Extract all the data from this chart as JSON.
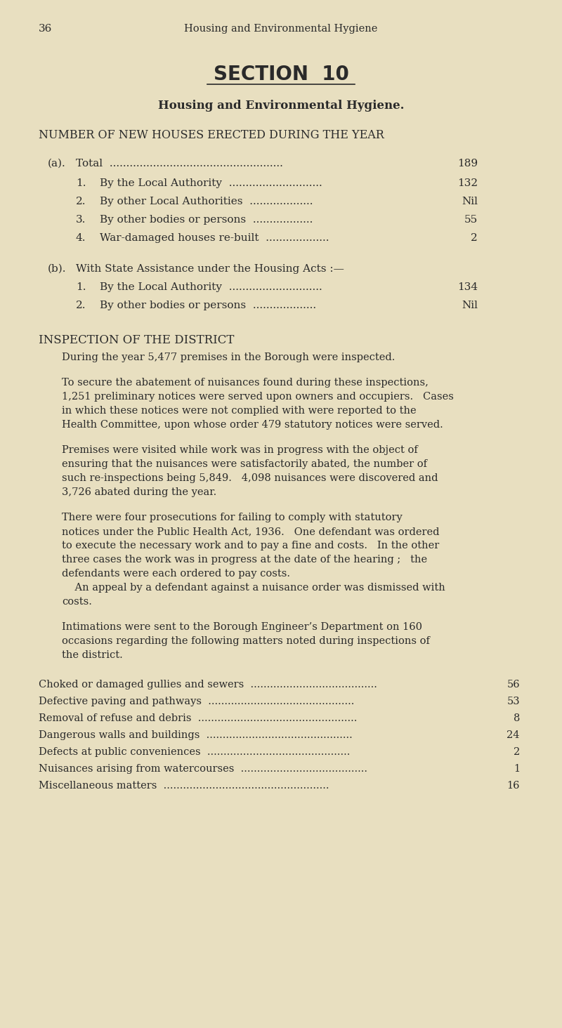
{
  "bg_color": "#e8dfc0",
  "text_color": "#2a2a2a",
  "page_number": "36",
  "header_title": "Housing and Environmental Hygiene",
  "section_title": "SECTION  10",
  "subtitle": "Housing and Environmental Hygiene.",
  "number_heading": "NUMBER OF NEW HOUSES ERECTED DURING THE YEAR",
  "section_a_label": "(a).",
  "section_a_total_label": "Total",
  "section_a_total_dots": "....................................................",
  "section_a_total_value": "189",
  "section_a_items": [
    {
      "num": "1.",
      "label": "By the Local Authority",
      "dots": "............................",
      "value": "132"
    },
    {
      "num": "2.",
      "label": "By other Local Authorities",
      "dots": "...................",
      "value": "Nil"
    },
    {
      "num": "3.",
      "label": "By other bodies or persons",
      "dots": "..................",
      "value": "55"
    },
    {
      "num": "4.",
      "label": "War-damaged houses re-built",
      "dots": "...................",
      "value": "2"
    }
  ],
  "section_b_label": "(b).",
  "section_b_title": "With State Assistance under the Housing Acts :—",
  "section_b_items": [
    {
      "num": "1.",
      "label": "By the Local Authority",
      "dots": "............................",
      "value": "134"
    },
    {
      "num": "2.",
      "label": "By other bodies or persons",
      "dots": "...................",
      "value": "Nil"
    }
  ],
  "inspection_heading": "INSPECTION OF THE DISTRICT",
  "para1": "During the year 5,477 premises in the Borough were inspected.",
  "para2": "To secure the abatement of nuisances found during these inspections,\n1,251 preliminary notices were served upon owners and occupiers.   Cases\nin which these notices were not complied with were reported to the\nHealth Committee, upon whose order 479 statutory notices were served.",
  "para3": "Premises were visited while work was in progress with the object of\nensuring that the nuisances were satisfactorily abated, the number of\nsuch re-inspections being 5,849.   4,098 nuisances were discovered and\n3,726 abated during the year.",
  "para4a": "There were four prosecutions for failing to comply with statutory\nnotices under the Public Health Act, 1936.   One defendant was ordered\nto execute the necessary work and to pay a fine and costs.   In the other\nthree cases the work was in progress at the date of the hearing ;   the\ndefendants were each ordered to pay costs.",
  "para4b": "    An appeal by a defendant against a nuisance order was dismissed with\ncosts.",
  "para5": "Intimations were sent to the Borough Engineer’s Department on 160\noccasions regarding the following matters noted during inspections of\nthe district.",
  "table_items": [
    {
      "label": "Choked or damaged gullies and sewers",
      "dots": ".......................................",
      "value": "56"
    },
    {
      "label": "Defective paving and pathways",
      "dots": ".............................................",
      "value": "53"
    },
    {
      "label": "Removal of refuse and debris",
      "dots": ".................................................",
      "value": "8"
    },
    {
      "label": "Dangerous walls and buildings",
      "dots": ".............................................",
      "value": "24"
    },
    {
      "label": "Defects at public conveniences",
      "dots": "............................................",
      "value": "2"
    },
    {
      "label": "Nuisances arising from watercourses",
      "dots": ".......................................",
      "value": "1"
    },
    {
      "label": "Miscellaneous matters",
      "dots": "...................................................",
      "value": "16"
    }
  ]
}
